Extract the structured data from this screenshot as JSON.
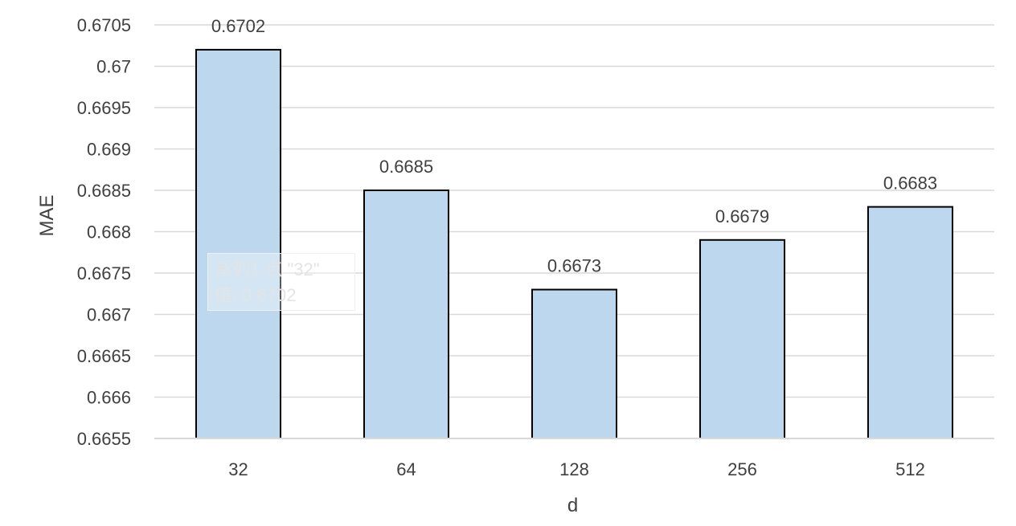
{
  "chart_data": {
    "type": "bar",
    "categories": [
      "32",
      "64",
      "128",
      "256",
      "512"
    ],
    "values": [
      0.6702,
      0.6685,
      0.6673,
      0.6679,
      0.6683
    ],
    "data_labels": [
      "0.6702",
      "0.6685",
      "0.6673",
      "0.6679",
      "0.6683"
    ],
    "xlabel": "d",
    "ylabel": "MAE",
    "ylim": [
      0.6655,
      0.6705
    ],
    "yticks": [
      "0.6655",
      "0.666",
      "0.6665",
      "0.667",
      "0.6675",
      "0.668",
      "0.6685",
      "0.669",
      "0.6695",
      "0.67",
      "0.6705"
    ],
    "grid": true,
    "bar_color": "#bdd7ee",
    "bar_edge_color": "#000000",
    "grid_color": "#d9d9d9"
  },
  "tooltip": {
    "line1": "系列1 点 \"32\"",
    "line2": "值: 0.6702"
  }
}
